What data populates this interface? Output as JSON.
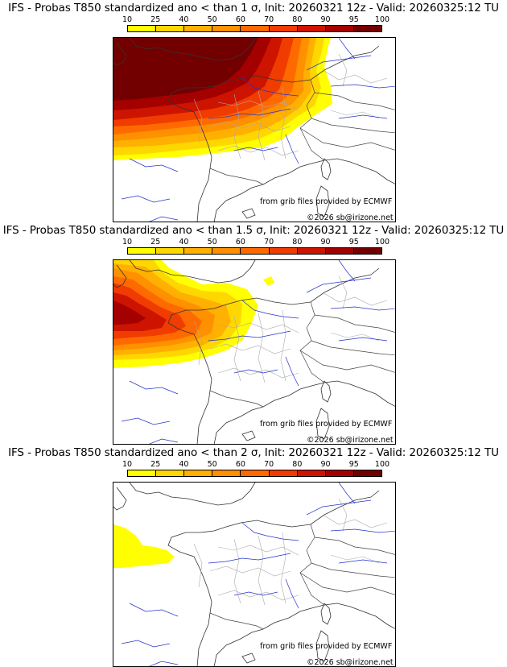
{
  "colorbar": {
    "ticks": [
      "10",
      "25",
      "40",
      "50",
      "60",
      "70",
      "80",
      "90",
      "95",
      "100"
    ],
    "colors": [
      "#ffff00",
      "#ffd700",
      "#ffb000",
      "#ff9000",
      "#ff6a00",
      "#f03c00",
      "#cc1400",
      "#a40000",
      "#720000"
    ]
  },
  "panels": [
    {
      "title": "IFS - Probas T850  standardized ano < than 1 σ, Init: 20260321 12z - Valid: 20260325:12 TU",
      "source": "from grib files provided by ECMWF",
      "copyright": "©2026 sb@irizone.net"
    },
    {
      "title": "IFS - Probas T850  standardized ano < than 1.5 σ, Init: 20260321 12z - Valid: 20260325:12 TU",
      "source": "from grib files provided by ECMWF",
      "copyright": "©2026 sb@irizone.net"
    },
    {
      "title": "IFS - Probas T850  standardized ano < than 2 σ, Init: 20260321 12z - Valid: 20260325:12 TU",
      "source": "from grib files provided by ECMWF",
      "copyright": "©2026 sb@irizone.net"
    }
  ]
}
